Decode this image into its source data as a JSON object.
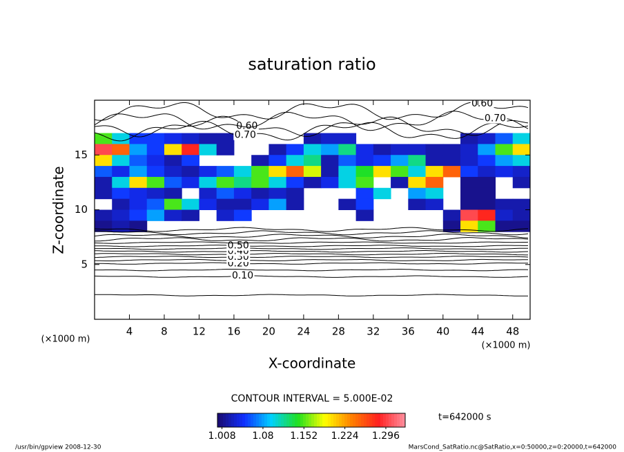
{
  "chart_data": {
    "type": "contour",
    "title": "saturation ratio",
    "x_label": "X-coordinate",
    "y_label": "Z-coordinate",
    "x_unit": "(×1000 m)",
    "y_unit": "(×1000 m)",
    "xlim": [
      0,
      50
    ],
    "ylim": [
      0,
      20
    ],
    "xticks": [
      4,
      8,
      12,
      16,
      20,
      24,
      28,
      32,
      36,
      40,
      44,
      48
    ],
    "yticks": [
      5,
      10,
      15
    ],
    "heatmap": {
      "x": [
        1,
        3,
        5,
        7,
        9,
        11,
        13,
        15,
        17,
        19,
        21,
        23,
        25,
        27,
        29,
        31,
        33,
        35,
        37,
        39,
        41,
        43,
        45,
        47,
        49
      ],
      "z": [
        16.5,
        15.5,
        14.5,
        13.5,
        12.5,
        11.5,
        10.5,
        9.5,
        8.5
      ],
      "values": [
        [
          1.15,
          1.1,
          1.05,
          1.05,
          1.04,
          1.03,
          1.02,
          1.02,
          null,
          null,
          null,
          null,
          1.02,
          1.03,
          1.03,
          null,
          null,
          null,
          null,
          null,
          null,
          1.02,
          1.03,
          1.06,
          1.1
        ],
        [
          1.3,
          1.25,
          1.08,
          1.05,
          1.2,
          1.28,
          1.1,
          1.02,
          null,
          null,
          1.02,
          1.05,
          1.1,
          1.08,
          1.12,
          1.04,
          1.02,
          1.03,
          1.03,
          1.02,
          1.02,
          1.03,
          1.08,
          1.15,
          1.2
        ],
        [
          1.2,
          1.1,
          1.06,
          1.04,
          1.02,
          1.05,
          null,
          null,
          null,
          1.02,
          1.05,
          1.1,
          1.12,
          1.02,
          1.06,
          1.04,
          1.05,
          1.08,
          1.12,
          1.02,
          1.02,
          1.03,
          1.05,
          1.08,
          1.1
        ],
        [
          1.06,
          1.04,
          1.08,
          1.05,
          1.03,
          1.02,
          1.04,
          1.06,
          1.1,
          1.15,
          1.2,
          1.25,
          1.18,
          1.02,
          1.1,
          1.14,
          1.2,
          1.15,
          1.1,
          1.2,
          1.25,
          1.05,
          1.03,
          1.04,
          1.03
        ],
        [
          1.02,
          1.1,
          1.2,
          1.15,
          1.06,
          1.04,
          1.1,
          1.15,
          1.12,
          1.15,
          1.1,
          1.05,
          1.02,
          1.04,
          1.1,
          1.15,
          null,
          1.02,
          1.2,
          1.25,
          null,
          1.01,
          1.01,
          null,
          1.02
        ],
        [
          1.02,
          1.05,
          1.04,
          1.03,
          1.02,
          null,
          1.03,
          1.06,
          1.04,
          1.02,
          1.03,
          1.02,
          null,
          null,
          null,
          1.05,
          1.1,
          null,
          1.08,
          1.1,
          null,
          1.01,
          1.01,
          null,
          null
        ],
        [
          null,
          1.02,
          1.04,
          1.06,
          1.15,
          1.1,
          1.04,
          1.02,
          1.02,
          1.04,
          1.08,
          1.02,
          null,
          null,
          1.02,
          1.05,
          null,
          null,
          1.02,
          1.03,
          null,
          1.01,
          1.01,
          1.02,
          1.02
        ],
        [
          1.02,
          1.03,
          1.05,
          1.08,
          1.03,
          1.02,
          null,
          1.03,
          1.05,
          null,
          null,
          null,
          null,
          null,
          null,
          1.02,
          null,
          null,
          null,
          null,
          1.02,
          1.3,
          1.28,
          1.03,
          1.02
        ],
        [
          1.01,
          1.02,
          1.01,
          null,
          null,
          null,
          null,
          null,
          null,
          null,
          null,
          null,
          null,
          null,
          null,
          null,
          null,
          null,
          null,
          null,
          1.01,
          1.2,
          1.15,
          1.01,
          1.01
        ]
      ]
    },
    "clim": [
      1.0,
      1.33
    ],
    "colormap": [
      "#1a0a6e",
      "#1030ff",
      "#00d0ff",
      "#20e020",
      "#ffff00",
      "#ff8000",
      "#ff2020",
      "#ff90a0"
    ],
    "colorbar_ticks": [
      1.008,
      1.08,
      1.152,
      1.224,
      1.296
    ],
    "contours": [
      {
        "level": 0.05,
        "z": 2.2
      },
      {
        "level": 0.1,
        "z": 3.9,
        "label": "0.10",
        "label_x": 17
      },
      {
        "level": 0.15,
        "z": 4.5
      },
      {
        "level": 0.2,
        "z": 5.1,
        "label": "0.20",
        "label_x": 16.5
      },
      {
        "level": 0.25,
        "z": 5.4
      },
      {
        "level": 0.3,
        "z": 5.7,
        "label": "0.30",
        "label_x": 16.5
      },
      {
        "level": 0.35,
        "z": 5.95
      },
      {
        "level": 0.4,
        "z": 6.2,
        "label": "0.40",
        "label_x": 16.5
      },
      {
        "level": 0.45,
        "z": 6.45
      },
      {
        "level": 0.5,
        "z": 6.7,
        "label": "0.50",
        "label_x": 16.5
      },
      {
        "level": 0.55,
        "z": 7.0
      },
      {
        "level": 0.6,
        "z": 7.3
      },
      {
        "level": 0.65,
        "z": 7.6
      },
      {
        "level": 0.7,
        "z": 7.9
      },
      {
        "level": 0.75,
        "z": 8.2
      },
      {
        "level": 0.6,
        "z": 17.6,
        "label": "0.60",
        "label_x": 17.5
      },
      {
        "level": 0.7,
        "z": 17.2,
        "label": "0.70",
        "label_x": 17.3
      },
      {
        "level": 0.6,
        "z": 19.0,
        "label": "0.60",
        "label_x": 44.5
      },
      {
        "level": 0.7,
        "z": 18.1,
        "label": "0.70",
        "label_x": 46
      }
    ],
    "contour_interval": "CONTOUR INTERVAL = 5.000E-02",
    "time_label": "t=642000 s",
    "footer_left": "/usr/bin/gpview   2008-12-30",
    "footer_right": "MarsCond_SatRatio.nc@SatRatio,x=0:50000,z=0:20000,t=642000"
  }
}
